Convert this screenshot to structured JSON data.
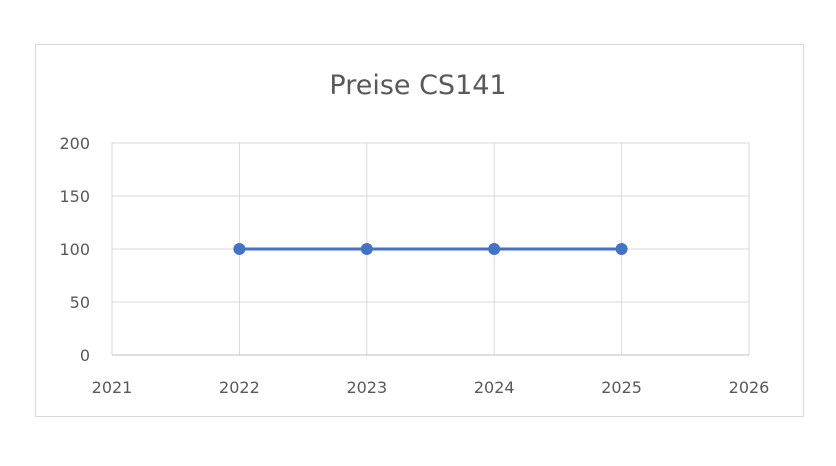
{
  "chart_data": {
    "type": "scatter",
    "title": "Preise CS141",
    "xlabel": "",
    "ylabel": "",
    "xlim": [
      2021,
      2026
    ],
    "ylim": [
      0,
      200
    ],
    "x_ticks": [
      "2021",
      "2022",
      "2023",
      "2024",
      "2025",
      "2026"
    ],
    "y_ticks": [
      "0",
      "50",
      "100",
      "150",
      "200"
    ],
    "grid": true,
    "legend": "none",
    "series": [
      {
        "x": [
          2022,
          2023,
          2024,
          2025
        ],
        "y": [
          100,
          100,
          100,
          100
        ],
        "color": "#4472c4",
        "lines": true,
        "markers": true
      }
    ]
  }
}
